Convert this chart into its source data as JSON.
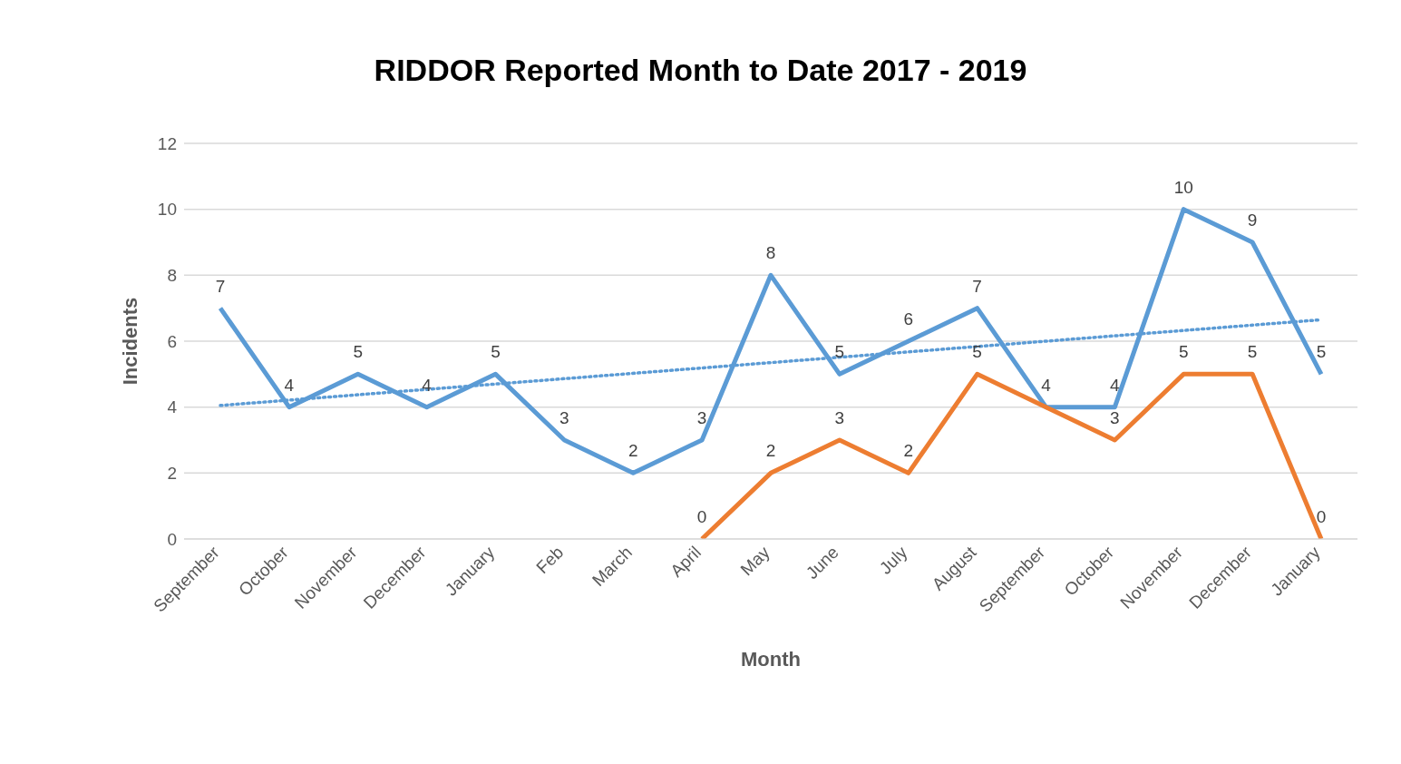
{
  "chart_data": {
    "type": "line",
    "title": "RIDDOR Reported Month to Date 2017 - 2019",
    "xlabel": "Month",
    "ylabel": "Incidents",
    "categories": [
      "September",
      "October",
      "November",
      "December",
      "January",
      "Feb",
      "March",
      "April",
      "May",
      "June",
      "July",
      "August",
      "September",
      "October",
      "November",
      "December",
      "January"
    ],
    "series": [
      {
        "color": "#5b9bd5",
        "values": [
          7,
          4,
          5,
          4,
          5,
          3,
          2,
          3,
          8,
          5,
          6,
          7,
          4,
          4,
          10,
          9,
          5
        ],
        "data_labels": true
      },
      {
        "color": "#ed7d31",
        "values": [
          null,
          null,
          null,
          null,
          null,
          null,
          null,
          0,
          2,
          3,
          2,
          5,
          4,
          3,
          5,
          5,
          0
        ],
        "value_labels": [
          null,
          null,
          null,
          null,
          null,
          null,
          null,
          "0",
          "2",
          "3",
          "2",
          "5",
          null,
          "3",
          "5",
          "5",
          "0"
        ]
      },
      {
        "color": "#5b9bd5",
        "line_style": "dotted",
        "values": [
          4.05,
          null,
          null,
          null,
          null,
          null,
          null,
          null,
          null,
          null,
          null,
          null,
          null,
          null,
          null,
          null,
          6.65
        ]
      }
    ],
    "ylim": [
      0,
      12
    ],
    "yticks": [
      0,
      2,
      4,
      6,
      8,
      10,
      12
    ],
    "grid": "y",
    "marker": "none"
  }
}
